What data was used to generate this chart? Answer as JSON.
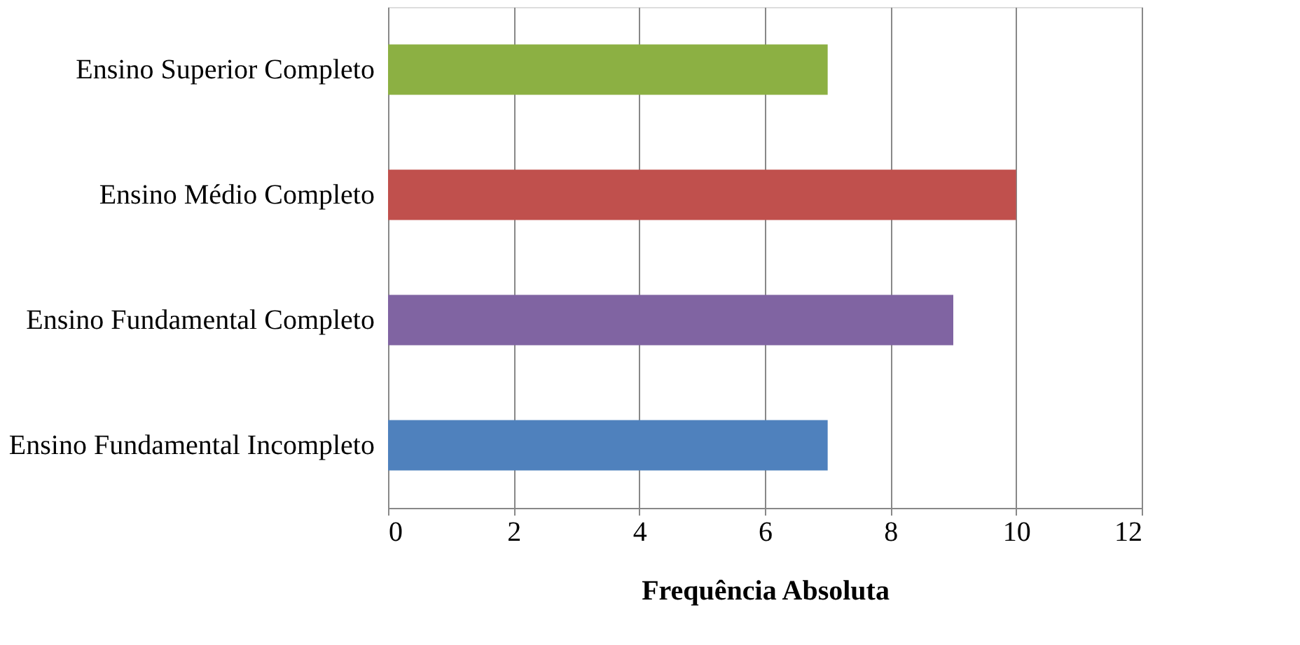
{
  "chart_data": {
    "type": "bar",
    "orientation": "horizontal",
    "xlabel": "Frequência Absoluta",
    "categories": [
      "Ensino Superior Completo",
      "Ensino Médio Completo",
      "Ensino Fundamental Completo",
      "Ensino Fundamental Incompleto"
    ],
    "values": [
      7,
      10,
      9,
      7
    ],
    "colors": [
      "#8cb043",
      "#c0504d",
      "#8064a2",
      "#4f81bd"
    ],
    "xlim": [
      0,
      12
    ],
    "xticks": [
      0,
      2,
      4,
      6,
      8,
      10,
      12
    ],
    "grid": "x",
    "legend": false
  }
}
